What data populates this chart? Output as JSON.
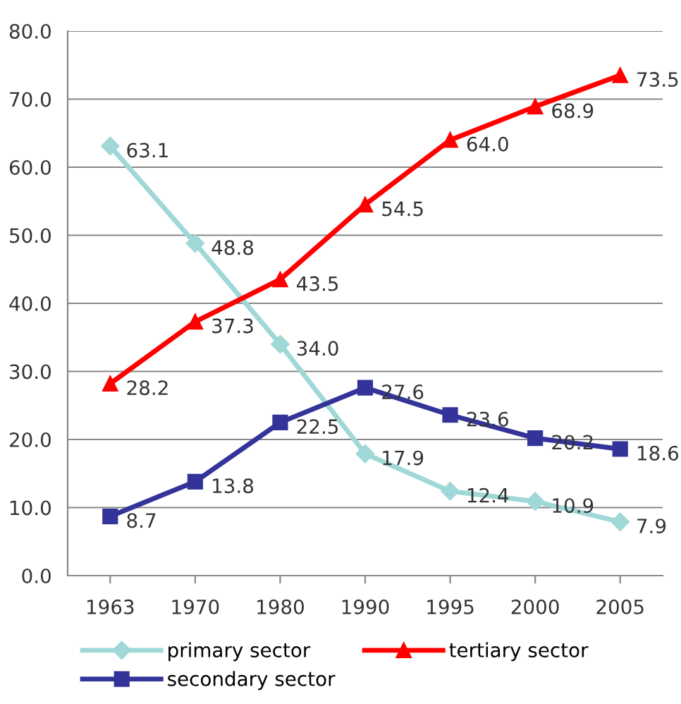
{
  "chart_data": {
    "type": "line",
    "categories": [
      "1963",
      "1970",
      "1980",
      "1990",
      "1995",
      "2000",
      "2005"
    ],
    "series": [
      {
        "name": "primary sector",
        "color": "#a0d8d8",
        "marker": "diamond",
        "values": [
          63.1,
          48.8,
          34.0,
          17.9,
          12.4,
          10.9,
          7.9
        ],
        "value_labels": [
          "63.1",
          "48.8",
          "34.0",
          "17.9",
          "12.4",
          "10.9",
          "7.9"
        ]
      },
      {
        "name": "secondary sector",
        "color": "#333399",
        "marker": "square",
        "values": [
          8.7,
          13.8,
          22.5,
          27.6,
          23.6,
          20.2,
          18.6
        ],
        "value_labels": [
          "8.7",
          "13.8",
          "22.5",
          "27.6",
          "23.6",
          "20.2",
          "18.6"
        ]
      },
      {
        "name": "tertiary sector",
        "color": "#ff0000",
        "marker": "triangle",
        "values": [
          28.2,
          37.3,
          43.5,
          54.5,
          64.0,
          68.9,
          73.5
        ],
        "value_labels": [
          "28.2",
          "37.3",
          "43.5",
          "54.5",
          "64.0",
          "68.9",
          "73.5"
        ]
      }
    ],
    "ylim": [
      0,
      80
    ],
    "yticks": [
      {
        "value": 0,
        "label": "0.0"
      },
      {
        "value": 10,
        "label": "10.0"
      },
      {
        "value": 20,
        "label": "20.0"
      },
      {
        "value": 30,
        "label": "30.0"
      },
      {
        "value": 40,
        "label": "40.0"
      },
      {
        "value": 50,
        "label": "50.0"
      },
      {
        "value": 60,
        "label": "60.0"
      },
      {
        "value": 70,
        "label": "70.0"
      },
      {
        "value": 80,
        "label": "80.0"
      }
    ],
    "grid": "y",
    "legend": "bottom",
    "line_style": "solid"
  }
}
